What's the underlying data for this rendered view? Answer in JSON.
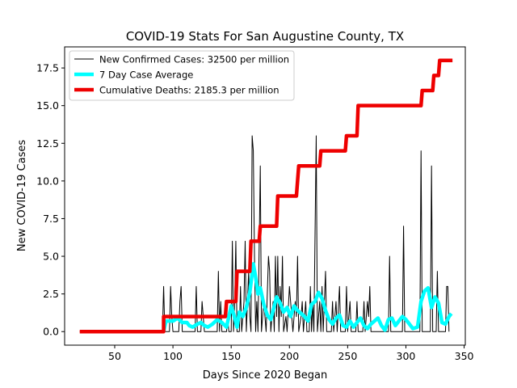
{
  "chart_data": {
    "type": "line",
    "title": "COVID-19 Stats For San Augustine County, TX",
    "xlabel": "Days Since 2020 Began",
    "ylabel": "New COVID-19 Cases",
    "xlim": [
      7,
      351
    ],
    "ylim": [
      -0.9,
      18.9
    ],
    "x_ticks": [
      50,
      100,
      150,
      200,
      250,
      300,
      350
    ],
    "y_ticks": [
      0.0,
      2.5,
      5.0,
      7.5,
      10.0,
      12.5,
      15.0,
      17.5
    ],
    "x_tick_labels": [
      "50",
      "100",
      "150",
      "200",
      "250",
      "300",
      "350"
    ],
    "y_tick_labels": [
      "0.0",
      "2.5",
      "5.0",
      "7.5",
      "10.0",
      "12.5",
      "15.0",
      "17.5"
    ],
    "grid": false,
    "legend_position": "top-left",
    "series": [
      {
        "name": "New Confirmed Cases: 32500 per million",
        "color": "#000000",
        "style": "thin",
        "points": [
          [
            20,
            0
          ],
          [
            91,
            0
          ],
          [
            92,
            3
          ],
          [
            93,
            0
          ],
          [
            97,
            0
          ],
          [
            98,
            3
          ],
          [
            99,
            1
          ],
          [
            100,
            0
          ],
          [
            105,
            0
          ],
          [
            106,
            2
          ],
          [
            107,
            3
          ],
          [
            108,
            0
          ],
          [
            119,
            0
          ],
          [
            120,
            3
          ],
          [
            121,
            0
          ],
          [
            124,
            0
          ],
          [
            125,
            2
          ],
          [
            126,
            1
          ],
          [
            127,
            0
          ],
          [
            138,
            0
          ],
          [
            139,
            4
          ],
          [
            140,
            0
          ],
          [
            141,
            2
          ],
          [
            142,
            0
          ],
          [
            146,
            0
          ],
          [
            147,
            1
          ],
          [
            148,
            0
          ],
          [
            150,
            0
          ],
          [
            151,
            6
          ],
          [
            152,
            0
          ],
          [
            153,
            2
          ],
          [
            154,
            6
          ],
          [
            155,
            0
          ],
          [
            157,
            0
          ],
          [
            158,
            3
          ],
          [
            159,
            0
          ],
          [
            161,
            2
          ],
          [
            162,
            6
          ],
          [
            163,
            0
          ],
          [
            165,
            4
          ],
          [
            166,
            1
          ],
          [
            167,
            0
          ],
          [
            168,
            13
          ],
          [
            169,
            12
          ],
          [
            170,
            5
          ],
          [
            171,
            0
          ],
          [
            172,
            2
          ],
          [
            173,
            0
          ],
          [
            175,
            11
          ],
          [
            176,
            0
          ],
          [
            178,
            2
          ],
          [
            179,
            1
          ],
          [
            180,
            0
          ],
          [
            182,
            5
          ],
          [
            183,
            4
          ],
          [
            184,
            0
          ],
          [
            186,
            2
          ],
          [
            187,
            0
          ],
          [
            188,
            5
          ],
          [
            189,
            1
          ],
          [
            190,
            5
          ],
          [
            191,
            0
          ],
          [
            192,
            3
          ],
          [
            193,
            1
          ],
          [
            194,
            5
          ],
          [
            195,
            0
          ],
          [
            197,
            1
          ],
          [
            198,
            0
          ],
          [
            200,
            3
          ],
          [
            201,
            2
          ],
          [
            202,
            1
          ],
          [
            203,
            0
          ],
          [
            205,
            2
          ],
          [
            206,
            1
          ],
          [
            207,
            5
          ],
          [
            208,
            0
          ],
          [
            210,
            1
          ],
          [
            211,
            2
          ],
          [
            212,
            0
          ],
          [
            214,
            2
          ],
          [
            215,
            0
          ],
          [
            217,
            0
          ],
          [
            218,
            3
          ],
          [
            219,
            0
          ],
          [
            220,
            2
          ],
          [
            221,
            0
          ],
          [
            223,
            13
          ],
          [
            224,
            0
          ],
          [
            226,
            2
          ],
          [
            227,
            0
          ],
          [
            228,
            3
          ],
          [
            229,
            0
          ],
          [
            231,
            4
          ],
          [
            232,
            0
          ],
          [
            236,
            0
          ],
          [
            237,
            2
          ],
          [
            238,
            0
          ],
          [
            240,
            2
          ],
          [
            241,
            0
          ],
          [
            243,
            3
          ],
          [
            244,
            0
          ],
          [
            248,
            0
          ],
          [
            249,
            3
          ],
          [
            250,
            0
          ],
          [
            252,
            2
          ],
          [
            253,
            0
          ],
          [
            257,
            0
          ],
          [
            258,
            2
          ],
          [
            259,
            0
          ],
          [
            263,
            0
          ],
          [
            264,
            2
          ],
          [
            265,
            0
          ],
          [
            267,
            2
          ],
          [
            268,
            1
          ],
          [
            269,
            3
          ],
          [
            270,
            0
          ],
          [
            285,
            0
          ],
          [
            286,
            5
          ],
          [
            287,
            0
          ],
          [
            297,
            0
          ],
          [
            298,
            7
          ],
          [
            299,
            0
          ],
          [
            312,
            0
          ],
          [
            313,
            12
          ],
          [
            314,
            0
          ],
          [
            321,
            0
          ],
          [
            322,
            11
          ],
          [
            323,
            0
          ],
          [
            326,
            0
          ],
          [
            327,
            4
          ],
          [
            328,
            0
          ],
          [
            334,
            0
          ],
          [
            335,
            3
          ],
          [
            336,
            3
          ],
          [
            337,
            0
          ]
        ]
      },
      {
        "name": "7 Day Case Average",
        "color": "#00ffff",
        "style": "thick",
        "points": [
          [
            92,
            0
          ],
          [
            94,
            0.7
          ],
          [
            97,
            0.7
          ],
          [
            100,
            0.7
          ],
          [
            104,
            0.9
          ],
          [
            108,
            0.6
          ],
          [
            112,
            0.6
          ],
          [
            114,
            0.4
          ],
          [
            117,
            0.3
          ],
          [
            121,
            0.5
          ],
          [
            124,
            0.6
          ],
          [
            127,
            0.4
          ],
          [
            130,
            0.3
          ],
          [
            134,
            0.5
          ],
          [
            138,
            0.8
          ],
          [
            142,
            0.6
          ],
          [
            146,
            0.3
          ],
          [
            150,
            1.7
          ],
          [
            152,
            1.2
          ],
          [
            155,
            0.3
          ],
          [
            157,
            1.3
          ],
          [
            160,
            1.0
          ],
          [
            163,
            1.6
          ],
          [
            166,
            2.6
          ],
          [
            169,
            4.5
          ],
          [
            171,
            3.6
          ],
          [
            173,
            2.5
          ],
          [
            175,
            2.9
          ],
          [
            178,
            1.8
          ],
          [
            181,
            1.1
          ],
          [
            184,
            0.8
          ],
          [
            186,
            1.4
          ],
          [
            189,
            2.3
          ],
          [
            192,
            1.9
          ],
          [
            195,
            1.3
          ],
          [
            198,
            1.6
          ],
          [
            201,
            1.0
          ],
          [
            204,
            1.7
          ],
          [
            207,
            1.4
          ],
          [
            210,
            1.2
          ],
          [
            213,
            1.0
          ],
          [
            216,
            0.7
          ],
          [
            219,
            1.8
          ],
          [
            222,
            2.0
          ],
          [
            225,
            2.6
          ],
          [
            228,
            2.2
          ],
          [
            231,
            1.4
          ],
          [
            234,
            0.8
          ],
          [
            237,
            0.5
          ],
          [
            240,
            0.9
          ],
          [
            243,
            1.1
          ],
          [
            246,
            0.4
          ],
          [
            249,
            0.3
          ],
          [
            252,
            0.7
          ],
          [
            255,
            0.3
          ],
          [
            258,
            0.6
          ],
          [
            261,
            0.9
          ],
          [
            264,
            0.4
          ],
          [
            267,
            0.2
          ],
          [
            270,
            0.5
          ],
          [
            273,
            0.7
          ],
          [
            276,
            0.9
          ],
          [
            279,
            0.4
          ],
          [
            282,
            0.1
          ],
          [
            285,
            0.8
          ],
          [
            288,
            0.9
          ],
          [
            291,
            0.4
          ],
          [
            294,
            0.7
          ],
          [
            297,
            1.0
          ],
          [
            300,
            0.8
          ],
          [
            303,
            0.5
          ],
          [
            306,
            0.2
          ],
          [
            310,
            0.3
          ],
          [
            313,
            2.0
          ],
          [
            316,
            2.7
          ],
          [
            319,
            2.9
          ],
          [
            322,
            1.6
          ],
          [
            325,
            2.3
          ],
          [
            328,
            1.9
          ],
          [
            331,
            0.6
          ],
          [
            334,
            0.5
          ],
          [
            337,
            1.0
          ],
          [
            339,
            1.2
          ]
        ]
      },
      {
        "name": "Cumulative Deaths: 2185.3 per million",
        "color": "#ee0000",
        "style": "thick",
        "points": [
          [
            20,
            0
          ],
          [
            92,
            0
          ],
          [
            92,
            1
          ],
          [
            140,
            1
          ],
          [
            145,
            1
          ],
          [
            146,
            2
          ],
          [
            154,
            2
          ],
          [
            155,
            4
          ],
          [
            166,
            4
          ],
          [
            167,
            6
          ],
          [
            174,
            6
          ],
          [
            175,
            7
          ],
          [
            189,
            7
          ],
          [
            190,
            9
          ],
          [
            206,
            9
          ],
          [
            207,
            10
          ],
          [
            208,
            11
          ],
          [
            226,
            11
          ],
          [
            227,
            12
          ],
          [
            248,
            12
          ],
          [
            249,
            13
          ],
          [
            258,
            13
          ],
          [
            259,
            15
          ],
          [
            313,
            15
          ],
          [
            314,
            16
          ],
          [
            323,
            16
          ],
          [
            324,
            17
          ],
          [
            328,
            17
          ],
          [
            329,
            18
          ],
          [
            340,
            18
          ]
        ]
      }
    ]
  }
}
